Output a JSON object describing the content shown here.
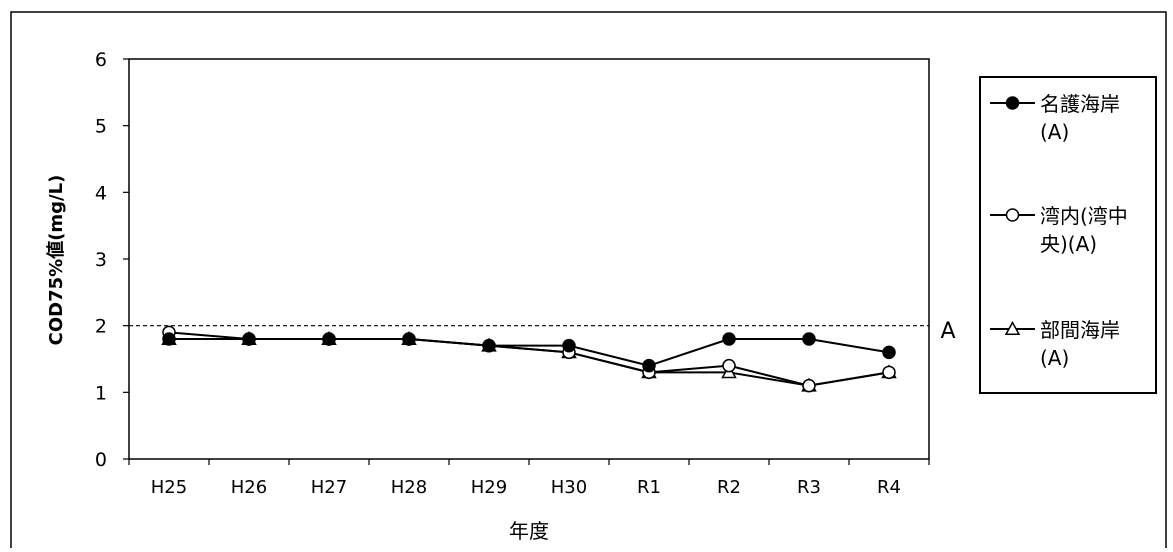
{
  "chart_data": {
    "type": "line",
    "xlabel": "年度",
    "ylabel": "COD75%値(mg/L)",
    "ylim": [
      0,
      6
    ],
    "yticks": [
      "0",
      "1",
      "2",
      "3",
      "4",
      "5",
      "6"
    ],
    "categories": [
      "H25",
      "H26",
      "H27",
      "H28",
      "H29",
      "H30",
      "R1",
      "R2",
      "R3",
      "R4"
    ],
    "grid": false,
    "legend_position": "right",
    "reference_line": {
      "value": 2,
      "label": "A",
      "style": "dashed"
    },
    "series": [
      {
        "name": "名護海岸(A)",
        "legend_lines": [
          "名護海岸",
          "(A)"
        ],
        "marker": "filled-circle",
        "values": [
          1.8,
          1.8,
          1.8,
          1.8,
          1.7,
          1.7,
          1.4,
          1.8,
          1.8,
          1.6
        ]
      },
      {
        "name": "湾内(湾中央)(A)",
        "legend_lines": [
          "湾内(湾中",
          "央)(A)"
        ],
        "marker": "open-circle",
        "values": [
          1.9,
          1.8,
          1.8,
          1.8,
          1.7,
          1.6,
          1.3,
          1.4,
          1.1,
          1.3
        ]
      },
      {
        "name": "部間海岸(A)",
        "legend_lines": [
          "部間海岸",
          "(A)"
        ],
        "marker": "open-triangle",
        "values": [
          1.8,
          1.8,
          1.8,
          1.8,
          1.7,
          1.6,
          1.3,
          1.3,
          1.1,
          1.3
        ]
      }
    ]
  }
}
